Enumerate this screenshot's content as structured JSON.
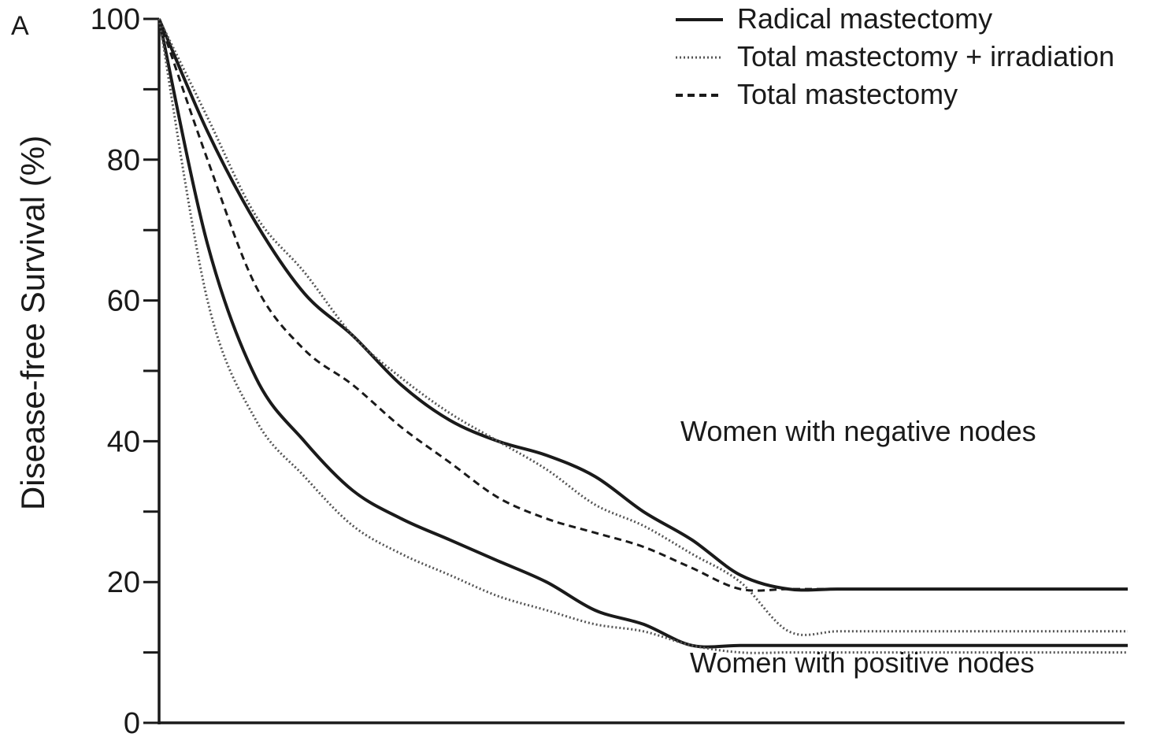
{
  "panel_label": "A",
  "chart_data": {
    "type": "line",
    "ylabel": "Disease-free Survival (%)",
    "xlabel": "",
    "ylim": [
      0,
      100
    ],
    "yticks": [
      {
        "value": 0,
        "label": "0"
      },
      {
        "value": 10,
        "label": ""
      },
      {
        "value": 20,
        "label": "20"
      },
      {
        "value": 30,
        "label": ""
      },
      {
        "value": 40,
        "label": "40"
      },
      {
        "value": 50,
        "label": ""
      },
      {
        "value": 60,
        "label": "60"
      },
      {
        "value": 70,
        "label": ""
      },
      {
        "value": 80,
        "label": "80"
      },
      {
        "value": 90,
        "label": ""
      },
      {
        "value": 100,
        "label": "100"
      }
    ],
    "x": [
      0,
      1,
      2,
      3,
      4,
      5,
      6,
      7,
      8,
      9,
      10,
      11,
      12,
      13,
      14,
      15,
      16,
      17,
      18,
      19,
      20
    ],
    "legend": {
      "placement": "top-right",
      "entries": [
        {
          "label": "Radical mastectomy",
          "style": "solid"
        },
        {
          "label": "Total mastectomy + irradiation",
          "style": "dotted"
        },
        {
          "label": "Total mastectomy",
          "style": "dashed"
        }
      ]
    },
    "annotations": [
      {
        "text": "Women with negative nodes"
      },
      {
        "text": "Women with positive nodes"
      }
    ],
    "series": [
      {
        "group": "negative",
        "style": "solid",
        "values": [
          100,
          84,
          71,
          61,
          55,
          48,
          43,
          40,
          38,
          35,
          30,
          26,
          21,
          19,
          19,
          19,
          19,
          19,
          19,
          19,
          19
        ]
      },
      {
        "group": "negative",
        "style": "dotted",
        "values": [
          100,
          86,
          72,
          64,
          55,
          49,
          44,
          40,
          36,
          31,
          28,
          24,
          20,
          13,
          13,
          13,
          13,
          13,
          13,
          13,
          13
        ]
      },
      {
        "group": "negative",
        "style": "dashed",
        "values": [
          100,
          80,
          62,
          53,
          48,
          42,
          37,
          32,
          29,
          27,
          25,
          22,
          19,
          19,
          19,
          19,
          19,
          19,
          19,
          19,
          19
        ]
      },
      {
        "group": "positive",
        "style": "solid",
        "values": [
          100,
          68,
          49,
          40,
          33,
          29,
          26,
          23,
          20,
          16,
          14,
          11,
          11,
          11,
          11,
          11,
          11,
          11,
          11,
          11,
          11
        ]
      },
      {
        "group": "positive",
        "style": "dotted",
        "values": [
          100,
          60,
          43,
          35,
          28,
          24,
          21,
          18,
          16,
          14,
          13,
          11,
          10,
          10,
          10,
          10,
          10,
          10,
          10,
          10,
          10
        ]
      }
    ],
    "colors": {
      "line": "#1a1a1a",
      "dotted_line": "#555555"
    }
  }
}
